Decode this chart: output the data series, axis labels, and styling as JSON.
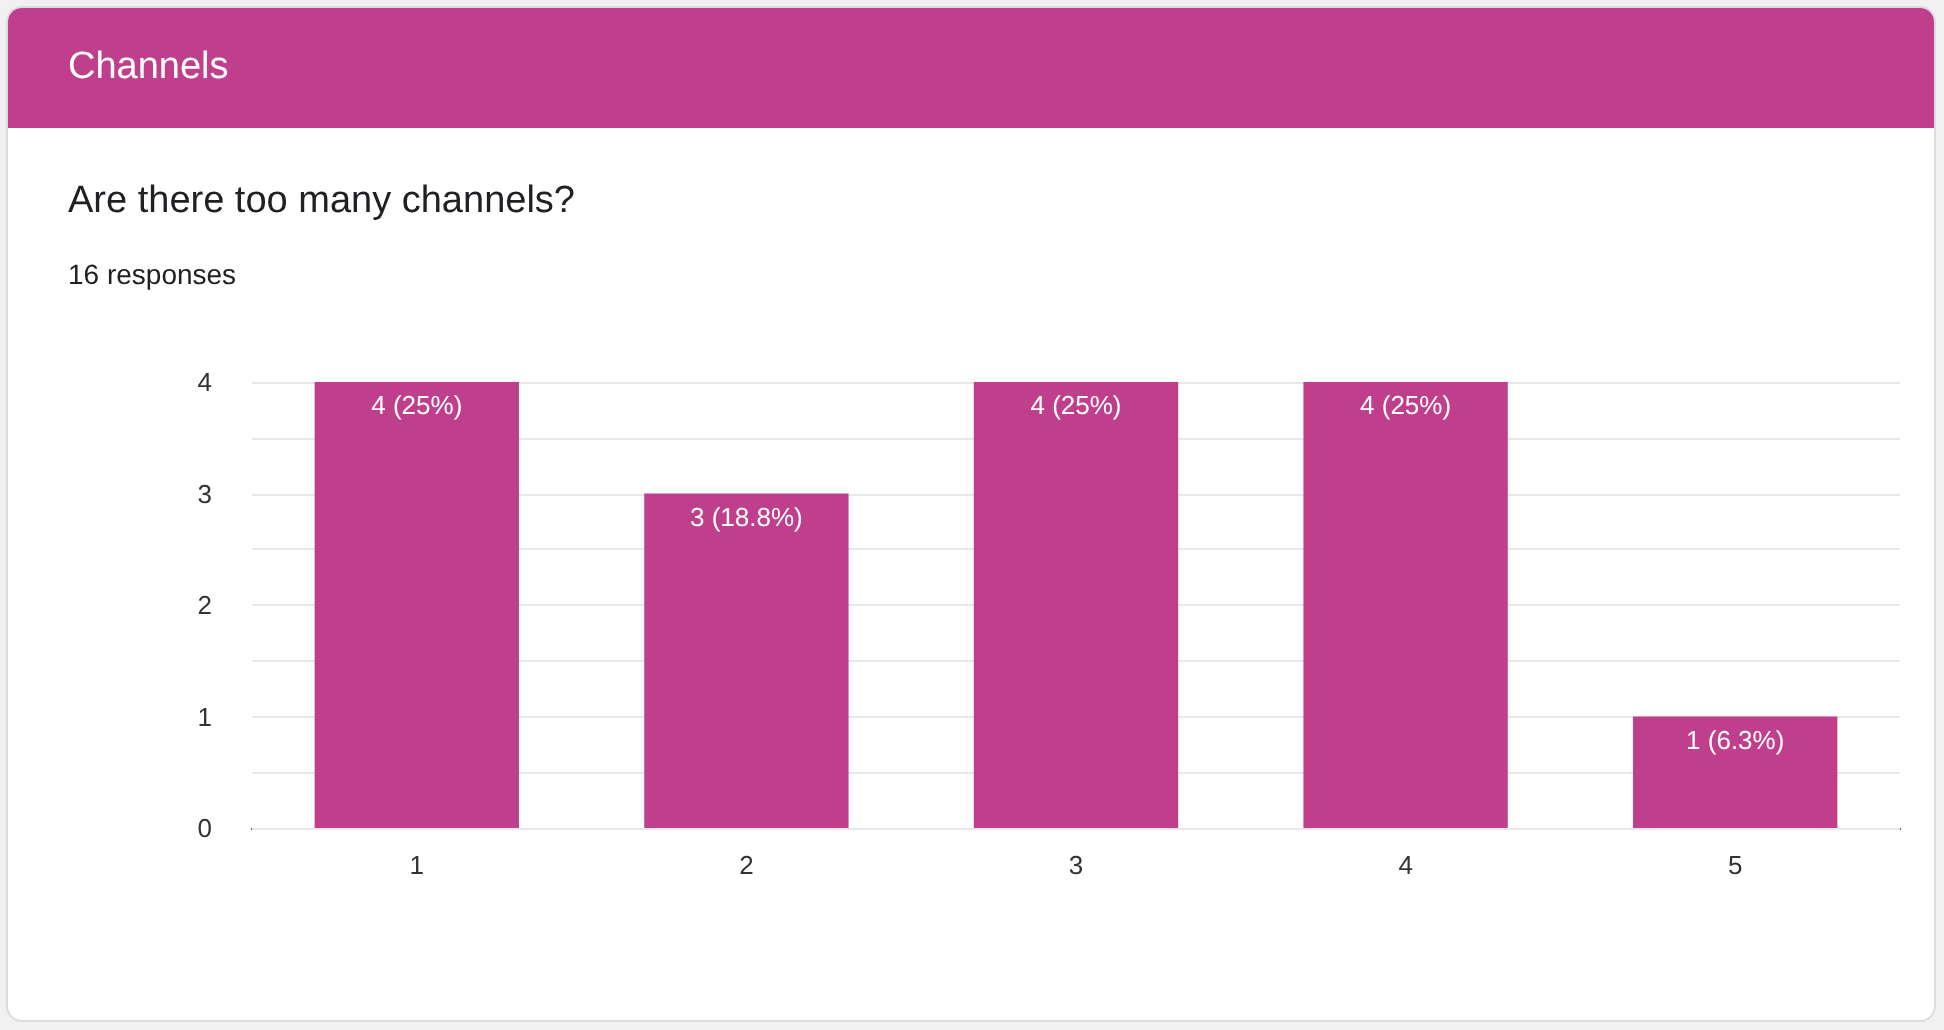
{
  "chart_data": {
    "type": "bar",
    "title": "Channels",
    "subtitle": "Are there too many channels?",
    "annotations": [
      "16 responses"
    ],
    "categories": [
      "1",
      "2",
      "3",
      "4",
      "5"
    ],
    "values": [
      4,
      3,
      4,
      4,
      1
    ],
    "value_labels": [
      "4 (25%)",
      "3 (18.8%)",
      "4 (25%)",
      "4 (25%)",
      "1 (6.3%)"
    ],
    "color": "#bf3f8c",
    "ylim": [
      0,
      4
    ],
    "yticks": [
      0,
      {
        "value": 0.5,
        "label": null
      },
      1,
      {
        "value": 1.5,
        "label": null
      },
      2,
      {
        "value": 2.5,
        "label": null
      },
      3,
      {
        "value": 3.5,
        "label": null
      },
      4
    ],
    "grid": "y"
  }
}
